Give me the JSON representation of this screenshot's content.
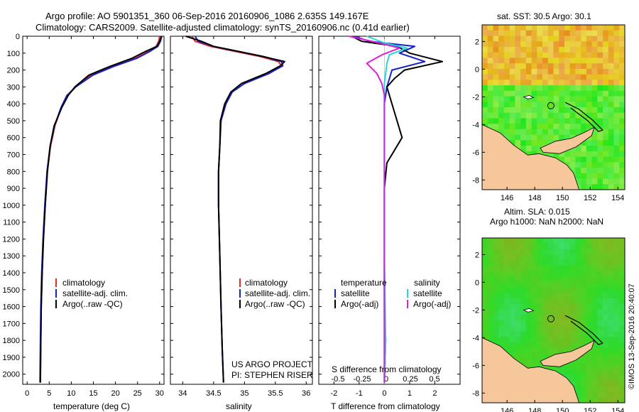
{
  "header": {
    "line1": "Argo profile: AO 5901351_360 06-Sep-2016 20160906_1086 2.635S 149.167E",
    "line2": "Climatology: CARS2009. Satellite-adjusted climatology: synTS_20160906.nc (0.41d earlier)"
  },
  "colors": {
    "clim": "#e8281e",
    "sat": "#1522c8",
    "argo": "#000000",
    "sal_sat": "#22d8dc",
    "sal_argo": "#e020d8",
    "land": "#f5c79a",
    "ocean_green": "#3ec83a"
  },
  "depth_ticks": [
    "0",
    "100",
    "200",
    "300",
    "400",
    "500",
    "600",
    "700",
    "800",
    "900",
    "1000",
    "1100",
    "1200",
    "1300",
    "1400",
    "1500",
    "1600",
    "1700",
    "1800",
    "1900",
    "2000"
  ],
  "chart_data": [
    {
      "type": "line",
      "title": "",
      "xlabel": "temperature (deg C)",
      "ylabel": "depth",
      "xlim": [
        -1,
        31
      ],
      "ylim": [
        2060,
        0
      ],
      "xticks": [
        "0",
        "5",
        "10",
        "15",
        "20",
        "25",
        "30"
      ],
      "legend": [
        "climatology",
        "satellite-adj. clim.",
        "Argo(..raw -QC)"
      ],
      "series": [
        {
          "name": "climatology",
          "x": [
            30.0,
            29.8,
            29.2,
            27.5,
            24.5,
            19.0,
            14.5,
            11.0,
            9.2,
            7.8,
            6.3,
            5.3,
            4.6,
            4.1,
            3.7,
            3.4,
            3.2,
            3.1,
            3.0
          ],
          "y": [
            0,
            30,
            60,
            90,
            130,
            180,
            230,
            300,
            350,
            420,
            530,
            650,
            800,
            1000,
            1200,
            1400,
            1600,
            1800,
            2050
          ]
        },
        {
          "name": "satellite",
          "x": [
            30.5,
            30.2,
            29.6,
            27.8,
            24.9,
            19.5,
            14.9,
            11.0,
            9.0,
            7.7,
            6.2,
            5.2,
            4.5,
            4.0,
            3.6,
            3.3,
            3.1,
            3.0,
            2.9
          ],
          "y": [
            0,
            30,
            60,
            90,
            130,
            180,
            230,
            300,
            350,
            420,
            530,
            650,
            800,
            1000,
            1200,
            1400,
            1600,
            1800,
            2050
          ]
        },
        {
          "name": "argo",
          "x": [
            30.4,
            30.0,
            29.4,
            26.8,
            23.8,
            18.6,
            14.0,
            10.8,
            9.3,
            7.9,
            6.1,
            5.2,
            4.6,
            4.1,
            3.7,
            3.4,
            3.2,
            3.1,
            3.0
          ],
          "y": [
            0,
            30,
            60,
            90,
            130,
            180,
            230,
            300,
            350,
            420,
            530,
            650,
            800,
            1000,
            1200,
            1400,
            1600,
            1800,
            2050
          ]
        }
      ]
    },
    {
      "type": "line",
      "xlabel": "salinity",
      "xlim": [
        33.8,
        36.1
      ],
      "ylim": [
        2060,
        0
      ],
      "xticks": [
        "34",
        "34.5",
        "35",
        "35.5",
        "36"
      ],
      "legend": [
        "climatology",
        "satellite-adj. clim.",
        "Argo(..raw -QC)"
      ],
      "annotations": [
        "US ARGO PROJECT",
        "PI: STEPHEN RISER"
      ],
      "series": [
        {
          "name": "climatology",
          "x": [
            34.15,
            34.2,
            34.45,
            34.85,
            35.25,
            35.55,
            35.6,
            35.4,
            35.0,
            34.8,
            34.7,
            34.62,
            34.6,
            34.58,
            34.58,
            34.6,
            34.62,
            34.64,
            34.66
          ],
          "y": [
            0,
            30,
            60,
            90,
            120,
            150,
            175,
            220,
            280,
            330,
            400,
            500,
            650,
            800,
            1000,
            1300,
            1600,
            1850,
            2050
          ]
        },
        {
          "name": "satellite",
          "x": [
            34.2,
            34.25,
            34.5,
            34.9,
            35.3,
            35.6,
            35.62,
            35.4,
            35.0,
            34.8,
            34.7,
            34.62,
            34.6,
            34.58,
            34.58,
            34.6,
            34.62,
            34.64,
            34.66
          ],
          "y": [
            0,
            30,
            60,
            90,
            120,
            150,
            175,
            220,
            280,
            330,
            400,
            500,
            650,
            800,
            1000,
            1300,
            1600,
            1850,
            2050
          ]
        },
        {
          "name": "argo",
          "x": [
            34.05,
            34.3,
            34.5,
            34.9,
            35.3,
            35.65,
            35.58,
            35.35,
            34.95,
            34.78,
            34.68,
            34.61,
            34.6,
            34.58,
            34.58,
            34.6,
            34.62,
            34.64,
            34.66
          ],
          "y": [
            0,
            30,
            60,
            90,
            120,
            150,
            175,
            220,
            280,
            330,
            400,
            500,
            650,
            800,
            1000,
            1300,
            1600,
            1850,
            2050
          ]
        }
      ]
    },
    {
      "type": "line",
      "xlabel": "T difference from climatology",
      "xlabel_top": "S difference from climatology",
      "xlim": [
        -2.6,
        3.0
      ],
      "ylim": [
        2060,
        0
      ],
      "xticks": [
        "-2",
        "-1",
        "0",
        "1",
        "2"
      ],
      "xticks_top": [
        "-0.5",
        "-0.25",
        "0",
        "0.25",
        "0.5"
      ],
      "legend_titles": [
        "temperature",
        "salinity"
      ],
      "legend": [
        "satellite",
        "Argo(-adj)",
        "satellite",
        "Argo(-adj)"
      ],
      "series": [
        {
          "name": "T satellite",
          "x": [
            -1.2,
            -0.6,
            1.2,
            0.6,
            1.6,
            0.3,
            0.2,
            0.1,
            0,
            0,
            0,
            0,
            0,
            0.05,
            0
          ],
          "y": [
            0,
            30,
            60,
            100,
            150,
            200,
            250,
            300,
            400,
            600,
            900,
            1200,
            1600,
            1800,
            2050
          ]
        },
        {
          "name": "T Argo",
          "x": [
            -1.3,
            -0.9,
            0.5,
            1.0,
            2.3,
            0.8,
            0.4,
            0.1,
            0.4,
            0.7,
            0.1,
            0,
            0,
            0,
            0
          ],
          "y": [
            0,
            30,
            60,
            100,
            150,
            200,
            250,
            300,
            450,
            600,
            750,
            900,
            1200,
            1700,
            2050
          ]
        },
        {
          "name": "S satellite",
          "x": [
            -0.7,
            0.0,
            0.9,
            0.2,
            0.1,
            0.05,
            0,
            0,
            0,
            0,
            0,
            0.05,
            0
          ],
          "y": [
            0,
            40,
            70,
            110,
            160,
            220,
            280,
            350,
            600,
            900,
            1300,
            1800,
            2050
          ]
        },
        {
          "name": "S Argo",
          "x": [
            -1.4,
            -0.2,
            0.6,
            -0.1,
            -0.7,
            -0.3,
            -0.1,
            0,
            0,
            0,
            0
          ],
          "y": [
            0,
            40,
            70,
            110,
            160,
            220,
            280,
            350,
            600,
            900,
            2050
          ]
        }
      ]
    },
    {
      "type": "heatmap",
      "title": "sat. SST: 30.5 Argo: 30.1",
      "xticks": [
        "146",
        "148",
        "150",
        "152",
        "154"
      ],
      "yticks": [
        "2",
        "0",
        "-2",
        "-4",
        "-6",
        "-8"
      ],
      "xlim": [
        144.2,
        154.5
      ],
      "ylim": [
        -8.7,
        3.2
      ],
      "marker": [
        149.167,
        -2.635
      ]
    },
    {
      "type": "heatmap",
      "title": "Altim. SLA: 0.015",
      "subtitle": "Argo h1000: NaN h2000: NaN",
      "xticks": [
        "146",
        "148",
        "150",
        "152",
        "154"
      ],
      "yticks": [
        "2",
        "0",
        "-2",
        "-4",
        "-6",
        "-8"
      ],
      "xlim": [
        144.2,
        154.5
      ],
      "ylim": [
        -8.7,
        3.2
      ],
      "marker": [
        149.167,
        -2.635
      ]
    }
  ],
  "credit": "©IMOS 13-Sep-2016 20:40:07"
}
